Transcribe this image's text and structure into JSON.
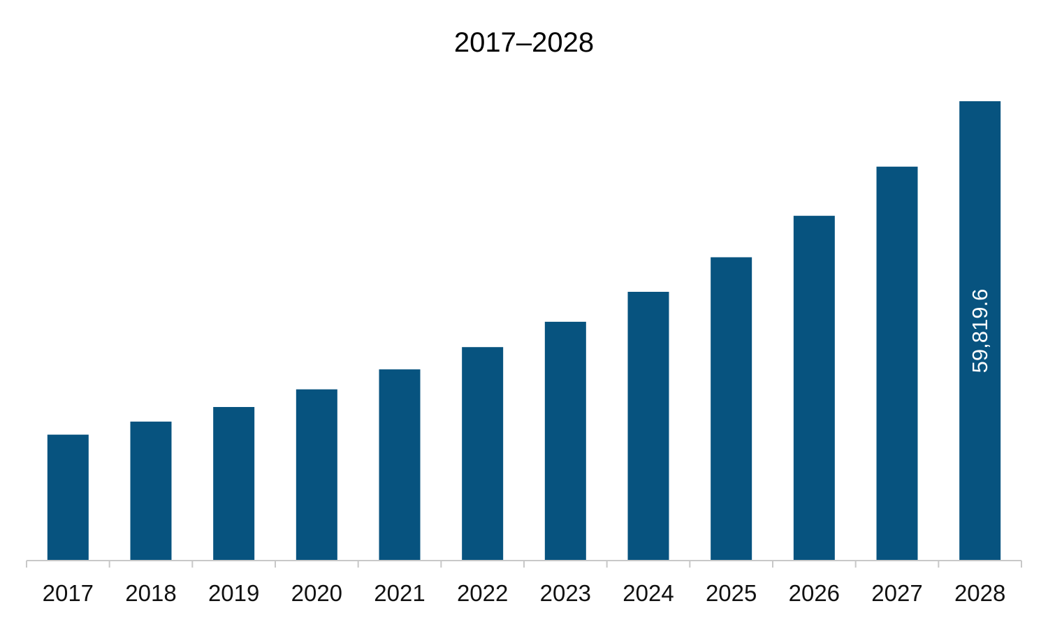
{
  "chart_data": {
    "type": "bar",
    "title": "2017–2028",
    "xlabel": "",
    "ylabel": "",
    "categories": [
      "2017",
      "2018",
      "2019",
      "2020",
      "2021",
      "2022",
      "2023",
      "2024",
      "2025",
      "2026",
      "2027",
      "2028"
    ],
    "values": [
      16400,
      18100,
      20000,
      22300,
      24900,
      27800,
      31100,
      35000,
      39500,
      44900,
      51300,
      59819.6
    ],
    "data_labels": [
      "",
      "",
      "",
      "",
      "",
      "",
      "",
      "",
      "",
      "",
      "",
      "59,819.6"
    ],
    "ylim": [
      0,
      60000
    ],
    "grid": false,
    "legend": "none",
    "colors": {
      "bar": "#07537f",
      "axis": "#c8c8c8",
      "data_label": "#ffffff"
    }
  }
}
